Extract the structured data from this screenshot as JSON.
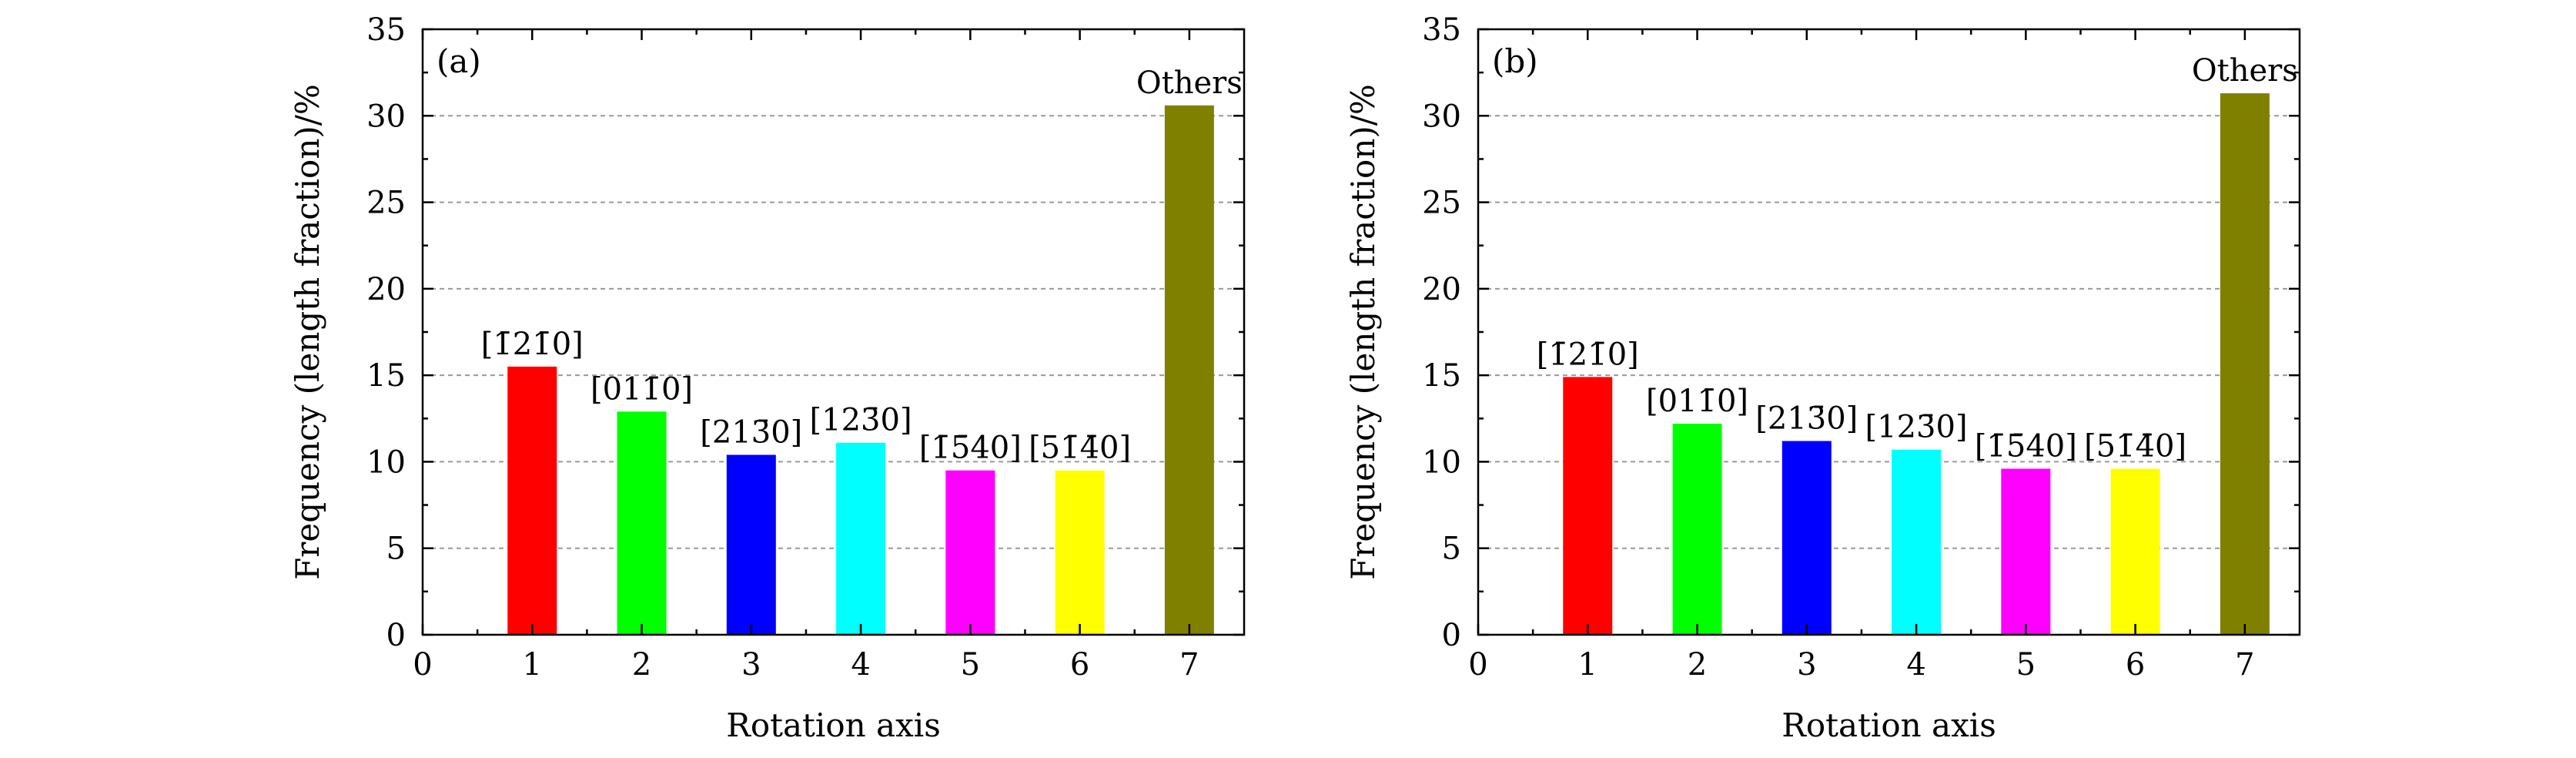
{
  "chart_data": [
    {
      "type": "bar",
      "panel_label": "(a)",
      "x": [
        1,
        2,
        3,
        4,
        5,
        6,
        7
      ],
      "values": [
        15.5,
        12.9,
        10.4,
        11.1,
        9.5,
        9.5,
        30.6
      ],
      "bar_labels": [
        "[1̄21̄0]",
        "[011̄0]",
        "[213̄0]",
        "[123̄0]",
        "[1̄5̄40]",
        "[51̄4̄0]",
        "Others"
      ],
      "colors": [
        "#ff0000",
        "#00ff00",
        "#0000ff",
        "#00ffff",
        "#ff00ff",
        "#ffff00",
        "#808000"
      ],
      "xlabel": "Rotation axis",
      "ylabel": "Frequency (length fraction)/%",
      "xlim": [
        0,
        7.5
      ],
      "ylim": [
        0,
        35
      ],
      "xticks": [
        "0",
        "1",
        "2",
        "3",
        "4",
        "5",
        "6",
        "7"
      ],
      "yticks": [
        "0",
        "5",
        "10",
        "15",
        "20",
        "25",
        "30",
        "35"
      ],
      "grid": "horizontal dashed"
    },
    {
      "type": "bar",
      "panel_label": "(b)",
      "x": [
        1,
        2,
        3,
        4,
        5,
        6,
        7
      ],
      "values": [
        14.9,
        12.2,
        11.2,
        10.7,
        9.6,
        9.6,
        31.3
      ],
      "bar_labels": [
        "[1̄21̄0]",
        "[011̄0]",
        "[213̄0]",
        "[123̄0]",
        "[1̄5̄40]",
        "[51̄4̄0]",
        "Others"
      ],
      "colors": [
        "#ff0000",
        "#00ff00",
        "#0000ff",
        "#00ffff",
        "#ff00ff",
        "#ffff00",
        "#808000"
      ],
      "xlabel": "Rotation axis",
      "ylabel": "Frequency (length fraction)/%",
      "xlim": [
        0,
        7.5
      ],
      "ylim": [
        0,
        35
      ],
      "xticks": [
        "0",
        "1",
        "2",
        "3",
        "4",
        "5",
        "6",
        "7"
      ],
      "yticks": [
        "0",
        "5",
        "10",
        "15",
        "20",
        "25",
        "30",
        "35"
      ],
      "grid": "horizontal dashed"
    }
  ]
}
